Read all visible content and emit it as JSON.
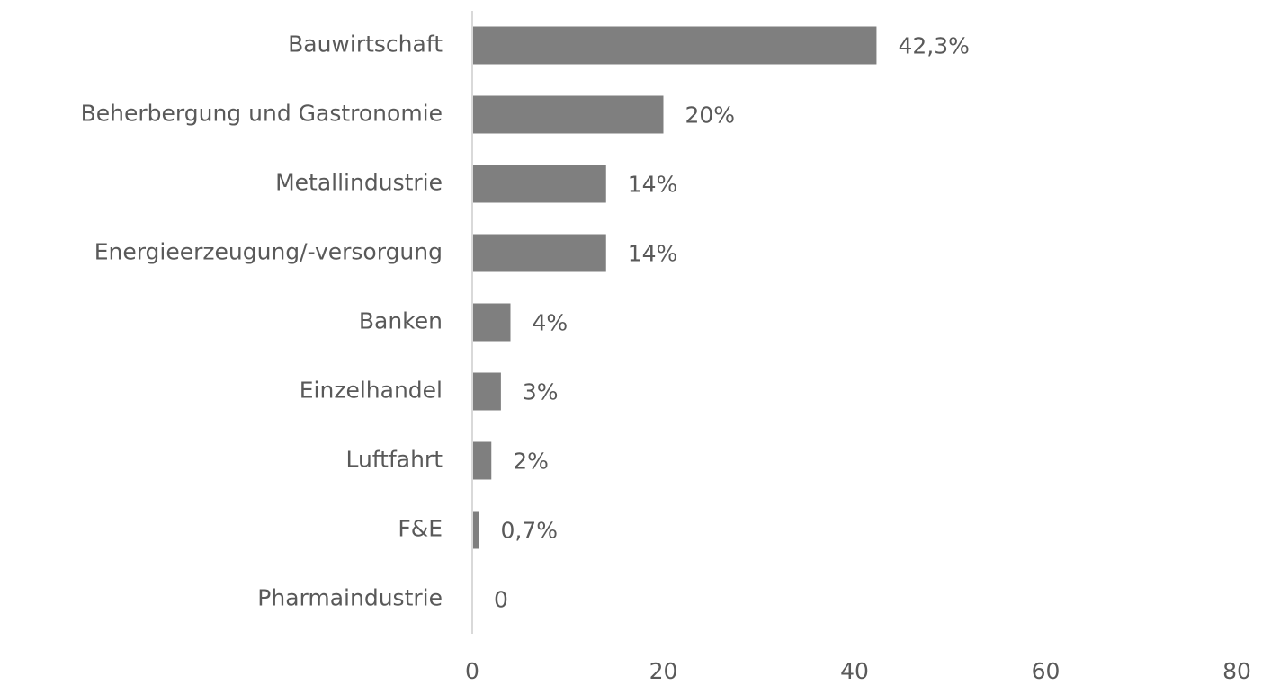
{
  "chart_data": {
    "type": "bar",
    "orientation": "horizontal",
    "categories": [
      "Bauwirtschaft",
      "Beherbergung und Gastronomie",
      "Metallindustrie",
      "Energieerzeugung/-versorgung",
      "Banken",
      "Einzelhandel",
      "Luftfahrt",
      "F&E",
      "Pharmaindustrie"
    ],
    "values": [
      42.3,
      20,
      14,
      14,
      4,
      3,
      2,
      0.7,
      0
    ],
    "value_labels": [
      "42,3%",
      "20%",
      "14%",
      "14%",
      "4%",
      "3%",
      "2%",
      "0,7%",
      "0"
    ],
    "color": "#7f7f7f",
    "xlim": [
      0,
      80
    ],
    "xticks": [
      0,
      20,
      40,
      60,
      80
    ],
    "grid": false
  }
}
